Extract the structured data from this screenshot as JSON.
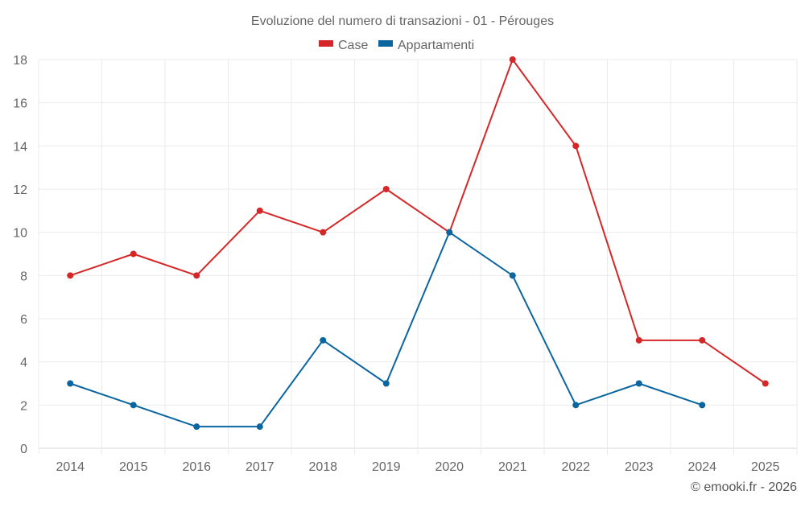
{
  "chart_data": {
    "type": "line",
    "title": "Evoluzione del numero di transazioni - 01 - Pérouges",
    "xlabel": "",
    "ylabel": "",
    "categories": [
      "2014",
      "2015",
      "2016",
      "2017",
      "2018",
      "2019",
      "2020",
      "2021",
      "2022",
      "2023",
      "2024",
      "2025"
    ],
    "ylim": [
      0,
      18
    ],
    "yticks": [
      0,
      2,
      4,
      6,
      8,
      10,
      12,
      14,
      16,
      18
    ],
    "grid": true,
    "legend_position": "top-center",
    "series": [
      {
        "name": "Case",
        "color": "#d62728",
        "values": [
          8,
          9,
          8,
          11,
          10,
          12,
          10,
          18,
          14,
          5,
          5,
          3
        ]
      },
      {
        "name": "Appartamenti",
        "color": "#0b66a0",
        "values": [
          3,
          2,
          1,
          1,
          5,
          3,
          10,
          8,
          2,
          3,
          2,
          null
        ]
      }
    ],
    "credit": "© emooki.fr - 2026"
  }
}
